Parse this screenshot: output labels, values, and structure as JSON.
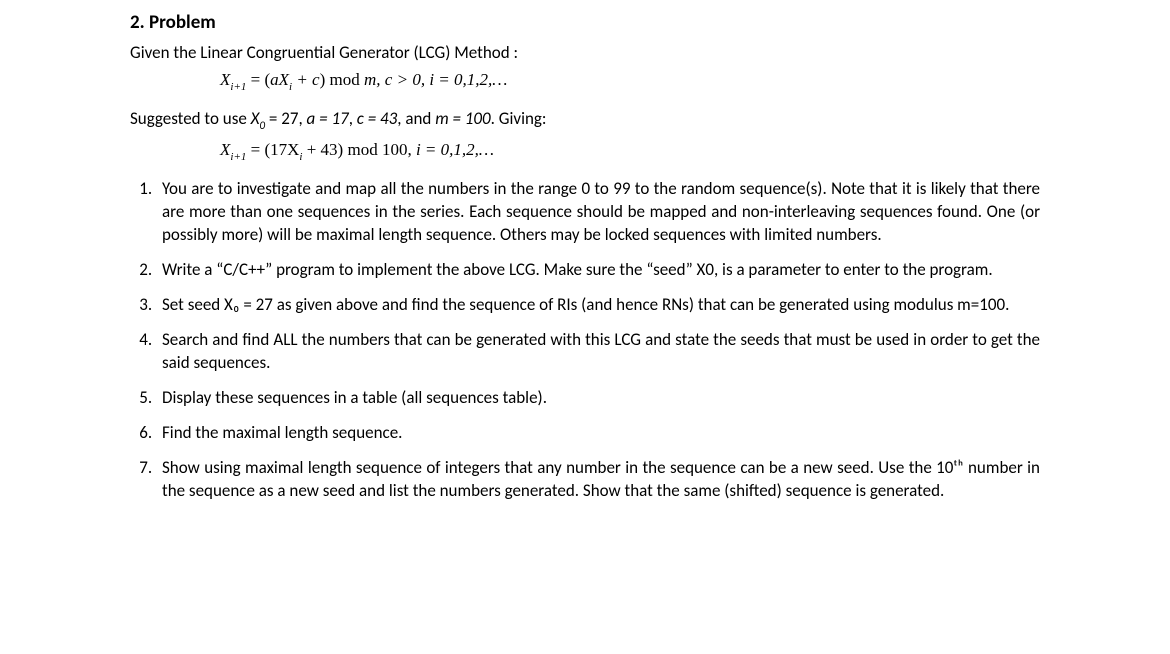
{
  "heading": "2. Problem",
  "intro": "Given the Linear Congruential Generator (LCG) Method :",
  "formula1": {
    "lhs_var": "X",
    "lhs_sub": "i+1",
    "rhs_a": "aX",
    "rhs_a_sub": "i",
    "rhs_c": " + c",
    "mod": " mod ",
    "mod_m": "m,",
    "cond": "   c > 0,   i = 0,1,2,…"
  },
  "params_prefix": "Suggested to use ",
  "params_x0var": "X",
  "params_x0sub": "0",
  "params_x0val": " = 27, ",
  "params_a": "a = 17",
  "params_sep1": ", ",
  "params_c": "c = 43",
  "params_sep2": ", and ",
  "params_m": "m = 100",
  "params_suffix": ".  Giving:",
  "formula2": {
    "lhs_var": "X",
    "lhs_sub": "i+1",
    "rhs": " = (17X",
    "rhs_sub": "i",
    "rhs_tail": " + 43) ",
    "mod": "mod ",
    "mod_m": "100,",
    "cond": "    i = 0,1,2,…"
  },
  "items": [
    "You are to investigate and map all the numbers in the range 0 to 99 to the random sequence(s). Note that it is likely that there are more than one sequences in the series. Each sequence should be mapped and non-interleaving sequences found. One (or possibly more) will be maximal length sequence. Others may be locked sequences with limited numbers.",
    "Write a “C/C++” program to implement the above LCG. Make sure the “seed” X0, is a parameter to enter to the program.",
    "Set seed X₀ = 27 as given above and find the sequence of RIs (and hence RNs) that can be generated using modulus m=100.",
    "Search and find ALL the numbers that can be generated with this LCG and state the seeds that must be used in order to get the said sequences.",
    "Display these sequences in a table (all sequences table).",
    "Find the maximal length sequence.",
    "Show using maximal length sequence of integers that any number in the sequence can be a new seed. Use the 10ᵗʰ number in the sequence as a new seed and list the numbers generated. Show that the same (shifted) sequence is generated."
  ],
  "item3_mital": "m"
}
